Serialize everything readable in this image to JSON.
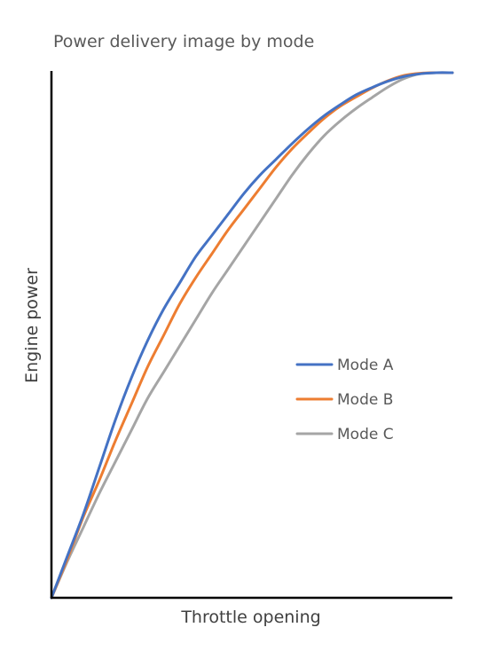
{
  "chart_data": {
    "type": "line",
    "title": "Power delivery image by mode",
    "xlabel": "Throttle opening",
    "ylabel": "Engine power",
    "xlim": [
      0,
      100
    ],
    "ylim": [
      0,
      100
    ],
    "x_ticks_shown": false,
    "y_ticks_shown": false,
    "grid": false,
    "legend_position": "right-center",
    "x": [
      0,
      4,
      8,
      12,
      16,
      20,
      24,
      28,
      32,
      36,
      40,
      44,
      48,
      52,
      56,
      60,
      64,
      68,
      72,
      76,
      80,
      84,
      88,
      92,
      96,
      100
    ],
    "series": [
      {
        "name": "Mode A",
        "color": "#4472C4",
        "values": [
          0,
          8,
          16,
          25,
          34,
          42,
          49,
          55,
          60,
          65,
          69,
          73,
          77,
          80.5,
          83.5,
          86.5,
          89.3,
          91.8,
          93.9,
          95.8,
          97.2,
          98.4,
          99.3,
          99.8,
          100,
          100
        ]
      },
      {
        "name": "Mode B",
        "color": "#ED7D31",
        "values": [
          0,
          7.5,
          15.5,
          22.5,
          30,
          37,
          44,
          50,
          56,
          61,
          65.5,
          70,
          74,
          78,
          82,
          85.5,
          88.5,
          91.3,
          93.6,
          95.4,
          97.1,
          98.5,
          99.5,
          99.9,
          100,
          100
        ]
      },
      {
        "name": "Mode C",
        "color": "#A5A5A5",
        "values": [
          0,
          7,
          13.5,
          20,
          26,
          32,
          38,
          43,
          48,
          53,
          58,
          62.5,
          67,
          71.5,
          76,
          80.5,
          84.5,
          88,
          90.8,
          93.2,
          95.3,
          97.3,
          98.9,
          99.8,
          100,
          100
        ]
      }
    ]
  }
}
